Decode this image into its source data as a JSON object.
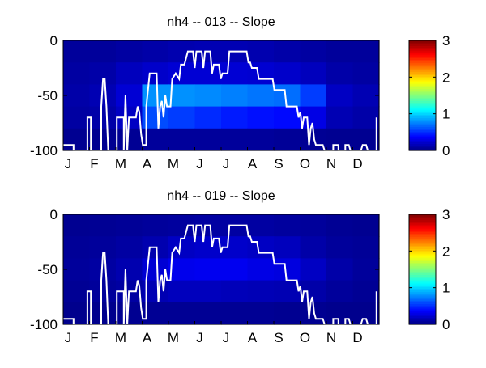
{
  "chart_data": [
    {
      "type": "heatmap",
      "title": "nh4 -- 013 -- Slope",
      "x_ticks": [
        "J",
        "F",
        "M",
        "A",
        "M",
        "J",
        "J",
        "A",
        "S",
        "O",
        "N",
        "D"
      ],
      "y_ticks": [
        "0",
        "-50",
        "-100"
      ],
      "ylim": [
        -100,
        0
      ],
      "xlim_days": [
        0,
        365
      ],
      "depth_bands": [
        {
          "top": 0,
          "bottom": -20,
          "values": [
            0.08,
            0.08,
            0.1,
            0.12,
            0.14,
            0.15,
            0.15,
            0.14,
            0.12,
            0.1,
            0.08,
            0.08
          ]
        },
        {
          "top": -20,
          "bottom": -40,
          "values": [
            0.1,
            0.12,
            0.18,
            0.22,
            0.25,
            0.25,
            0.25,
            0.24,
            0.22,
            0.18,
            0.12,
            0.1
          ]
        },
        {
          "top": -40,
          "bottom": -60,
          "values": [
            0.12,
            0.15,
            0.25,
            0.8,
            0.8,
            0.78,
            0.75,
            0.72,
            0.7,
            0.55,
            0.2,
            0.15
          ]
        },
        {
          "top": -60,
          "bottom": -80,
          "values": [
            0.1,
            0.12,
            0.2,
            0.6,
            0.55,
            0.5,
            0.45,
            0.42,
            0.4,
            0.3,
            0.15,
            0.12
          ]
        },
        {
          "top": -80,
          "bottom": -100,
          "values": [
            0.05,
            0.05,
            0.06,
            0.08,
            0.08,
            0.08,
            0.08,
            0.08,
            0.07,
            0.06,
            0.05,
            0.05
          ]
        }
      ],
      "line": {
        "color": "#ffffff",
        "points": [
          [
            0,
            -95
          ],
          [
            12,
            -95
          ],
          [
            12,
            -100
          ],
          [
            28,
            -100
          ],
          [
            28,
            -70
          ],
          [
            32,
            -70
          ],
          [
            32,
            -100
          ],
          [
            44,
            -100
          ],
          [
            44,
            -60
          ],
          [
            46,
            -35
          ],
          [
            48,
            -35
          ],
          [
            50,
            -60
          ],
          [
            52,
            -100
          ],
          [
            62,
            -100
          ],
          [
            62,
            -70
          ],
          [
            70,
            -70
          ],
          [
            70,
            -100
          ],
          [
            72,
            -50
          ],
          [
            74,
            -100
          ],
          [
            76,
            -70
          ],
          [
            84,
            -70
          ],
          [
            86,
            -60
          ],
          [
            88,
            -65
          ],
          [
            90,
            -85
          ],
          [
            92,
            -95
          ],
          [
            96,
            -95
          ],
          [
            96,
            -60
          ],
          [
            100,
            -30
          ],
          [
            108,
            -30
          ],
          [
            110,
            -80
          ],
          [
            112,
            -60
          ],
          [
            114,
            -55
          ],
          [
            116,
            -70
          ],
          [
            118,
            -50
          ],
          [
            120,
            -60
          ],
          [
            124,
            -60
          ],
          [
            126,
            -35
          ],
          [
            130,
            -30
          ],
          [
            134,
            -35
          ],
          [
            136,
            -22
          ],
          [
            140,
            -22
          ],
          [
            144,
            -10
          ],
          [
            150,
            -10
          ],
          [
            152,
            -25
          ],
          [
            154,
            -10
          ],
          [
            160,
            -10
          ],
          [
            162,
            -25
          ],
          [
            164,
            -10
          ],
          [
            170,
            -10
          ],
          [
            172,
            -30
          ],
          [
            174,
            -22
          ],
          [
            180,
            -22
          ],
          [
            182,
            -35
          ],
          [
            184,
            -30
          ],
          [
            190,
            -30
          ],
          [
            192,
            -10
          ],
          [
            212,
            -10
          ],
          [
            214,
            -20
          ],
          [
            216,
            -20
          ],
          [
            218,
            -25
          ],
          [
            224,
            -25
          ],
          [
            226,
            -35
          ],
          [
            242,
            -35
          ],
          [
            244,
            -45
          ],
          [
            256,
            -45
          ],
          [
            258,
            -60
          ],
          [
            270,
            -60
          ],
          [
            272,
            -70
          ],
          [
            274,
            -65
          ],
          [
            276,
            -80
          ],
          [
            278,
            -70
          ],
          [
            282,
            -70
          ],
          [
            284,
            -95
          ],
          [
            286,
            -80
          ],
          [
            288,
            -75
          ],
          [
            290,
            -90
          ],
          [
            292,
            -95
          ],
          [
            300,
            -95
          ],
          [
            302,
            -100
          ],
          [
            312,
            -100
          ],
          [
            312,
            -95
          ],
          [
            318,
            -95
          ],
          [
            318,
            -100
          ],
          [
            326,
            -100
          ],
          [
            326,
            -95
          ],
          [
            330,
            -95
          ],
          [
            332,
            -100
          ],
          [
            344,
            -100
          ],
          [
            346,
            -95
          ],
          [
            350,
            -95
          ],
          [
            352,
            -100
          ],
          [
            362,
            -100
          ],
          [
            362,
            -70
          ]
        ]
      },
      "colorbar": {
        "min": 0,
        "max": 3,
        "ticks": [
          "0",
          "1",
          "2",
          "3"
        ]
      }
    },
    {
      "type": "heatmap",
      "title": "nh4 -- 019 -- Slope",
      "x_ticks": [
        "J",
        "F",
        "M",
        "A",
        "M",
        "J",
        "J",
        "A",
        "S",
        "O",
        "N",
        "D"
      ],
      "y_ticks": [
        "0",
        "-50",
        "-100"
      ],
      "ylim": [
        -100,
        0
      ],
      "xlim_days": [
        0,
        365
      ],
      "depth_bands": [
        {
          "top": 0,
          "bottom": -20,
          "values": [
            0.05,
            0.06,
            0.07,
            0.08,
            0.09,
            0.1,
            0.1,
            0.1,
            0.09,
            0.08,
            0.06,
            0.05
          ]
        },
        {
          "top": -20,
          "bottom": -40,
          "values": [
            0.07,
            0.08,
            0.1,
            0.14,
            0.2,
            0.22,
            0.22,
            0.2,
            0.18,
            0.12,
            0.08,
            0.07
          ]
        },
        {
          "top": -40,
          "bottom": -60,
          "values": [
            0.08,
            0.1,
            0.14,
            0.25,
            0.32,
            0.33,
            0.33,
            0.3,
            0.28,
            0.2,
            0.12,
            0.08
          ]
        },
        {
          "top": -60,
          "bottom": -80,
          "values": [
            0.06,
            0.08,
            0.1,
            0.15,
            0.18,
            0.18,
            0.17,
            0.16,
            0.15,
            0.12,
            0.08,
            0.06
          ]
        },
        {
          "top": -80,
          "bottom": -100,
          "values": [
            0.04,
            0.04,
            0.05,
            0.06,
            0.06,
            0.06,
            0.06,
            0.06,
            0.05,
            0.05,
            0.04,
            0.04
          ]
        }
      ],
      "line": {
        "color": "#ffffff",
        "points": [
          [
            0,
            -95
          ],
          [
            12,
            -95
          ],
          [
            12,
            -100
          ],
          [
            28,
            -100
          ],
          [
            28,
            -70
          ],
          [
            32,
            -70
          ],
          [
            32,
            -100
          ],
          [
            44,
            -100
          ],
          [
            44,
            -60
          ],
          [
            46,
            -35
          ],
          [
            48,
            -35
          ],
          [
            50,
            -60
          ],
          [
            52,
            -100
          ],
          [
            62,
            -100
          ],
          [
            62,
            -70
          ],
          [
            70,
            -70
          ],
          [
            70,
            -100
          ],
          [
            72,
            -50
          ],
          [
            74,
            -100
          ],
          [
            76,
            -70
          ],
          [
            84,
            -70
          ],
          [
            86,
            -60
          ],
          [
            88,
            -65
          ],
          [
            90,
            -85
          ],
          [
            92,
            -95
          ],
          [
            96,
            -95
          ],
          [
            96,
            -60
          ],
          [
            100,
            -30
          ],
          [
            108,
            -30
          ],
          [
            110,
            -80
          ],
          [
            112,
            -60
          ],
          [
            114,
            -55
          ],
          [
            116,
            -70
          ],
          [
            118,
            -50
          ],
          [
            120,
            -60
          ],
          [
            124,
            -60
          ],
          [
            126,
            -35
          ],
          [
            130,
            -30
          ],
          [
            134,
            -35
          ],
          [
            136,
            -22
          ],
          [
            140,
            -22
          ],
          [
            144,
            -10
          ],
          [
            150,
            -10
          ],
          [
            152,
            -25
          ],
          [
            154,
            -10
          ],
          [
            160,
            -10
          ],
          [
            162,
            -25
          ],
          [
            164,
            -10
          ],
          [
            170,
            -10
          ],
          [
            172,
            -30
          ],
          [
            174,
            -22
          ],
          [
            180,
            -22
          ],
          [
            182,
            -35
          ],
          [
            184,
            -30
          ],
          [
            190,
            -30
          ],
          [
            192,
            -10
          ],
          [
            212,
            -10
          ],
          [
            214,
            -20
          ],
          [
            216,
            -20
          ],
          [
            218,
            -25
          ],
          [
            224,
            -25
          ],
          [
            226,
            -35
          ],
          [
            242,
            -35
          ],
          [
            244,
            -45
          ],
          [
            256,
            -45
          ],
          [
            258,
            -60
          ],
          [
            270,
            -60
          ],
          [
            272,
            -70
          ],
          [
            274,
            -65
          ],
          [
            276,
            -80
          ],
          [
            278,
            -70
          ],
          [
            282,
            -70
          ],
          [
            284,
            -95
          ],
          [
            286,
            -80
          ],
          [
            288,
            -75
          ],
          [
            290,
            -90
          ],
          [
            292,
            -95
          ],
          [
            300,
            -95
          ],
          [
            302,
            -100
          ],
          [
            312,
            -100
          ],
          [
            312,
            -95
          ],
          [
            318,
            -95
          ],
          [
            318,
            -100
          ],
          [
            326,
            -100
          ],
          [
            326,
            -95
          ],
          [
            330,
            -95
          ],
          [
            332,
            -100
          ],
          [
            344,
            -100
          ],
          [
            346,
            -95
          ],
          [
            350,
            -95
          ],
          [
            352,
            -100
          ],
          [
            362,
            -100
          ],
          [
            362,
            -70
          ]
        ]
      },
      "colorbar": {
        "min": 0,
        "max": 3,
        "ticks": [
          "0",
          "1",
          "2",
          "3"
        ]
      }
    }
  ]
}
